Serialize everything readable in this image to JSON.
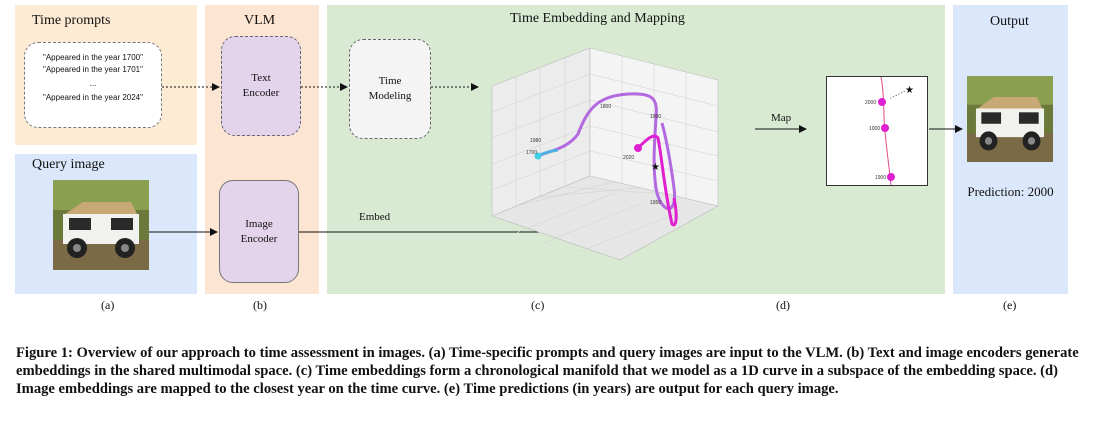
{
  "panels": {
    "time_prompts": {
      "title": "Time prompts"
    },
    "query": {
      "title": "Query image"
    },
    "vlm": {
      "title": "VLM"
    },
    "embedding": {
      "title": "Time Embedding and Mapping"
    },
    "output": {
      "title": "Output"
    }
  },
  "prompts": {
    "line1": "\"Appeared in the year 1700\"",
    "line2": "\"Appeared in the year 1701\"",
    "ellipsis": "...",
    "line3": "\"Appeared in the year 2024\""
  },
  "boxes": {
    "text_encoder": [
      "Text",
      "Encoder"
    ],
    "image_encoder": [
      "Image",
      "Encoder"
    ],
    "time_modeling": [
      "Time",
      "Modeling"
    ]
  },
  "arrows": {
    "map_label": "Map",
    "embed_label": "Embed"
  },
  "plot3d": {
    "curve_labels": [
      "1800",
      "1900",
      "1700",
      "2020",
      "1950",
      "1980"
    ],
    "star": "★"
  },
  "inset": {
    "ticks": [
      "2000",
      "1000",
      "1900"
    ],
    "star": "★"
  },
  "output": {
    "prediction": "Prediction: 2000"
  },
  "sublabels": [
    "(a)",
    "(b)",
    "(c)",
    "(d)",
    "(e)"
  ],
  "caption": "Figure 1: Overview of our approach to time assessment in images. (a) Time-specific prompts and query images are input to the VLM. (b) Text and image encoders generate embeddings in the shared multimodal space. (c) Time embeddings form a chronological manifold that we model as a 1D curve in a subspace of the embedding space. (d) Image embeddings are mapped to the closest year on the time curve. (e) Time predictions (in years) are output for each query image."
}
